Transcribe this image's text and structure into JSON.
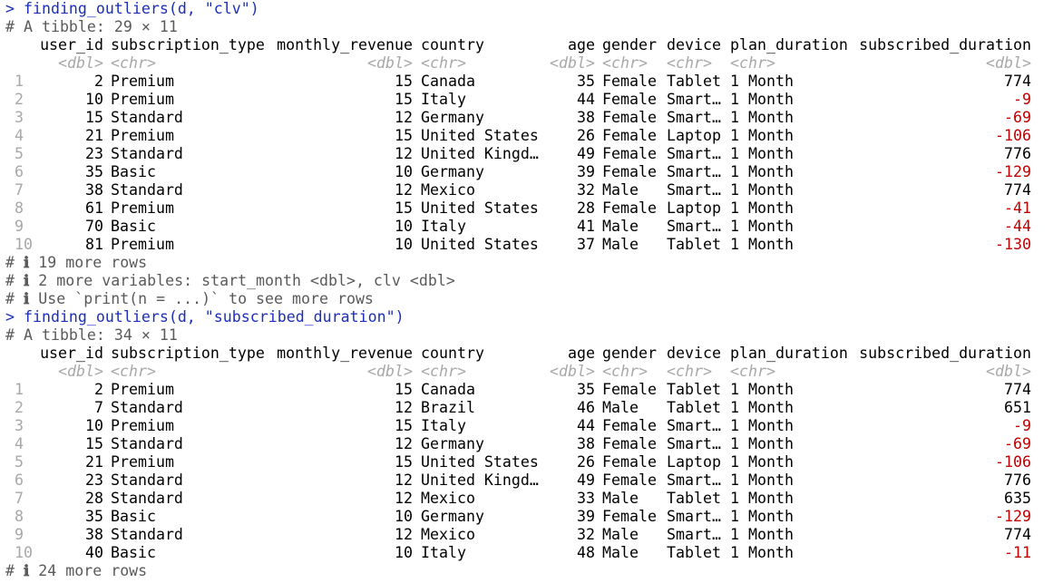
{
  "prompt": ">",
  "comment_mark": "#",
  "info_icon": "ℹ",
  "colors": {
    "command": "#1b2fb8",
    "negative": "#c00000",
    "muted": "#a8a8a8"
  },
  "headers": [
    "user_id",
    "subscription_type",
    "monthly_revenue",
    "country",
    "age",
    "gender",
    "device",
    "plan_duration",
    "subscribed_duration"
  ],
  "types": [
    "<dbl>",
    "<chr>",
    "<dbl>",
    "<chr>",
    "<dbl>",
    "<chr>",
    "<chr>",
    "<chr>",
    "<dbl>"
  ],
  "blocks": [
    {
      "command": "finding_outliers(d, \"clv\")",
      "tibble_info": "A tibble: 29 × 11",
      "rows": [
        [
          "1",
          "2",
          "Premium",
          "15",
          "Canada",
          "35",
          "Female",
          "Tablet",
          "1 Month",
          "774"
        ],
        [
          "2",
          "10",
          "Premium",
          "15",
          "Italy",
          "44",
          "Female",
          "Smart…",
          "1 Month",
          "-9"
        ],
        [
          "3",
          "15",
          "Standard",
          "12",
          "Germany",
          "38",
          "Female",
          "Smart…",
          "1 Month",
          "-69"
        ],
        [
          "4",
          "21",
          "Premium",
          "15",
          "United States",
          "26",
          "Female",
          "Laptop",
          "1 Month",
          "-106"
        ],
        [
          "5",
          "23",
          "Standard",
          "12",
          "United Kingd…",
          "49",
          "Female",
          "Smart…",
          "1 Month",
          "776"
        ],
        [
          "6",
          "35",
          "Basic",
          "10",
          "Germany",
          "39",
          "Female",
          "Smart…",
          "1 Month",
          "-129"
        ],
        [
          "7",
          "38",
          "Standard",
          "12",
          "Mexico",
          "32",
          "Male",
          "Smart…",
          "1 Month",
          "774"
        ],
        [
          "8",
          "61",
          "Premium",
          "15",
          "United States",
          "28",
          "Female",
          "Laptop",
          "1 Month",
          "-41"
        ],
        [
          "9",
          "70",
          "Basic",
          "10",
          "Italy",
          "41",
          "Male",
          "Smart…",
          "1 Month",
          "-44"
        ],
        [
          "10",
          "81",
          "Premium",
          "10",
          "United States",
          "37",
          "Male",
          "Tablet",
          "1 Month",
          "-130"
        ]
      ],
      "footer": [
        "19 more rows",
        "2 more variables: start_month <dbl>, clv <dbl>",
        "Use `print(n = ...)` to see more rows"
      ]
    },
    {
      "command": "finding_outliers(d, \"subscribed_duration\")",
      "tibble_info": "A tibble: 34 × 11",
      "rows": [
        [
          "1",
          "2",
          "Premium",
          "15",
          "Canada",
          "35",
          "Female",
          "Tablet",
          "1 Month",
          "774"
        ],
        [
          "2",
          "7",
          "Standard",
          "12",
          "Brazil",
          "46",
          "Male",
          "Tablet",
          "1 Month",
          "651"
        ],
        [
          "3",
          "10",
          "Premium",
          "15",
          "Italy",
          "44",
          "Female",
          "Smart…",
          "1 Month",
          "-9"
        ],
        [
          "4",
          "15",
          "Standard",
          "12",
          "Germany",
          "38",
          "Female",
          "Smart…",
          "1 Month",
          "-69"
        ],
        [
          "5",
          "21",
          "Premium",
          "15",
          "United States",
          "26",
          "Female",
          "Laptop",
          "1 Month",
          "-106"
        ],
        [
          "6",
          "23",
          "Standard",
          "12",
          "United Kingd…",
          "49",
          "Female",
          "Smart…",
          "1 Month",
          "776"
        ],
        [
          "7",
          "28",
          "Standard",
          "12",
          "Mexico",
          "33",
          "Male",
          "Tablet",
          "1 Month",
          "635"
        ],
        [
          "8",
          "35",
          "Basic",
          "10",
          "Germany",
          "39",
          "Female",
          "Smart…",
          "1 Month",
          "-129"
        ],
        [
          "9",
          "38",
          "Standard",
          "12",
          "Mexico",
          "32",
          "Male",
          "Smart…",
          "1 Month",
          "774"
        ],
        [
          "10",
          "40",
          "Basic",
          "10",
          "Italy",
          "48",
          "Male",
          "Tablet",
          "1 Month",
          "-11"
        ]
      ],
      "footer": [
        "24 more rows"
      ]
    }
  ]
}
